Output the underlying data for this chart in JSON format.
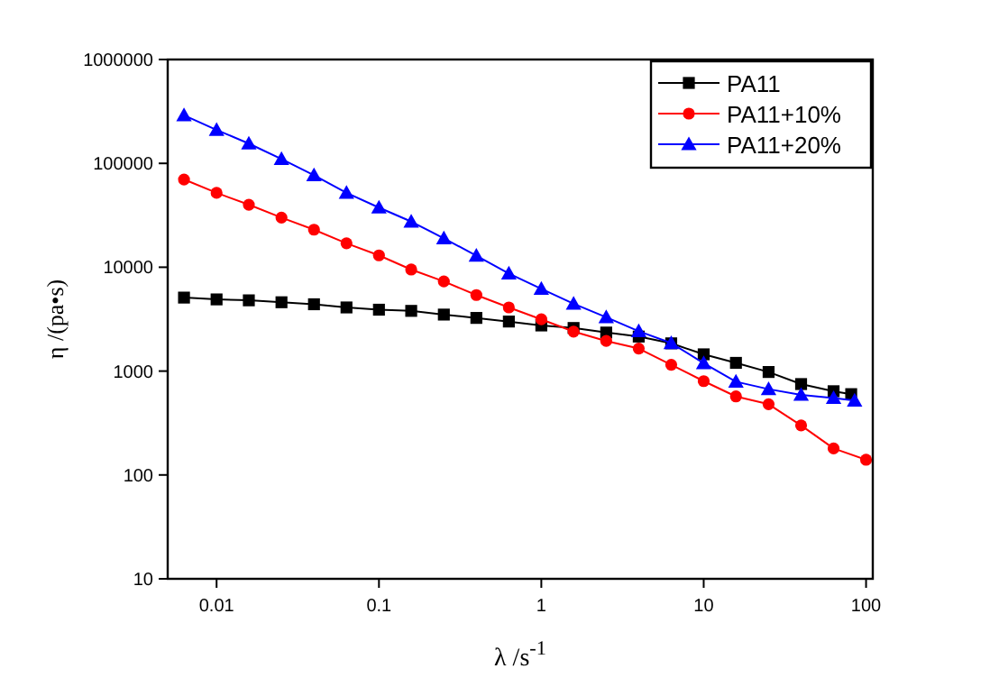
{
  "chart_data": {
    "type": "line",
    "xlabel": "λ /s$^{-1}$",
    "ylabel": "η /(pa•s)",
    "log": "xy",
    "xlim": [
      0.005,
      110
    ],
    "ylim": [
      10,
      1000000
    ],
    "xticks": [
      0.01,
      0.1,
      1,
      10,
      100
    ],
    "yticks": [
      10,
      100,
      1000,
      10000,
      100000,
      1000000
    ],
    "grid": false,
    "legend": "top right",
    "x": [
      0.0063,
      0.01,
      0.0158,
      0.0251,
      0.0398,
      0.0631,
      0.1,
      0.158,
      0.251,
      0.398,
      0.631,
      1,
      1.58,
      2.51,
      3.98,
      6.31,
      10,
      15.8,
      25.1,
      39.8,
      63.1,
      100
    ],
    "series": [
      {
        "name": "PA11",
        "color": "#000000",
        "marker": "square",
        "x": [
          0.0063,
          0.01,
          0.0158,
          0.0251,
          0.0398,
          0.0631,
          0.1,
          0.158,
          0.251,
          0.398,
          0.631,
          1,
          1.58,
          2.51,
          3.98,
          6.31,
          10,
          15.8,
          25.1,
          39.8,
          63.1,
          81
        ],
        "values": [
          5100,
          4900,
          4800,
          4600,
          4400,
          4100,
          3900,
          3800,
          3500,
          3250,
          3000,
          2750,
          2600,
          2350,
          2150,
          1850,
          1450,
          1200,
          980,
          750,
          640,
          600
        ]
      },
      {
        "name": "PA11+10%",
        "color": "#ff0000",
        "marker": "circle",
        "values": [
          70000,
          52000,
          40000,
          30000,
          23000,
          17000,
          13000,
          9500,
          7300,
          5400,
          4100,
          3150,
          2400,
          1950,
          1650,
          1150,
          800,
          570,
          480,
          300,
          180,
          140
        ]
      },
      {
        "name": "PA11+20%",
        "color": "#0000ff",
        "marker": "triangle",
        "x": [
          0.0063,
          0.01,
          0.0158,
          0.0251,
          0.0398,
          0.0631,
          0.1,
          0.158,
          0.251,
          0.398,
          0.631,
          1,
          1.58,
          2.51,
          3.98,
          6.31,
          10,
          15.8,
          25.1,
          39.8,
          63.1,
          85
        ],
        "values": [
          290000,
          210000,
          155000,
          110000,
          77000,
          52000,
          37500,
          27500,
          19000,
          12900,
          8700,
          6200,
          4450,
          3300,
          2420,
          1860,
          1190,
          790,
          670,
          590,
          550,
          520
        ]
      }
    ]
  }
}
